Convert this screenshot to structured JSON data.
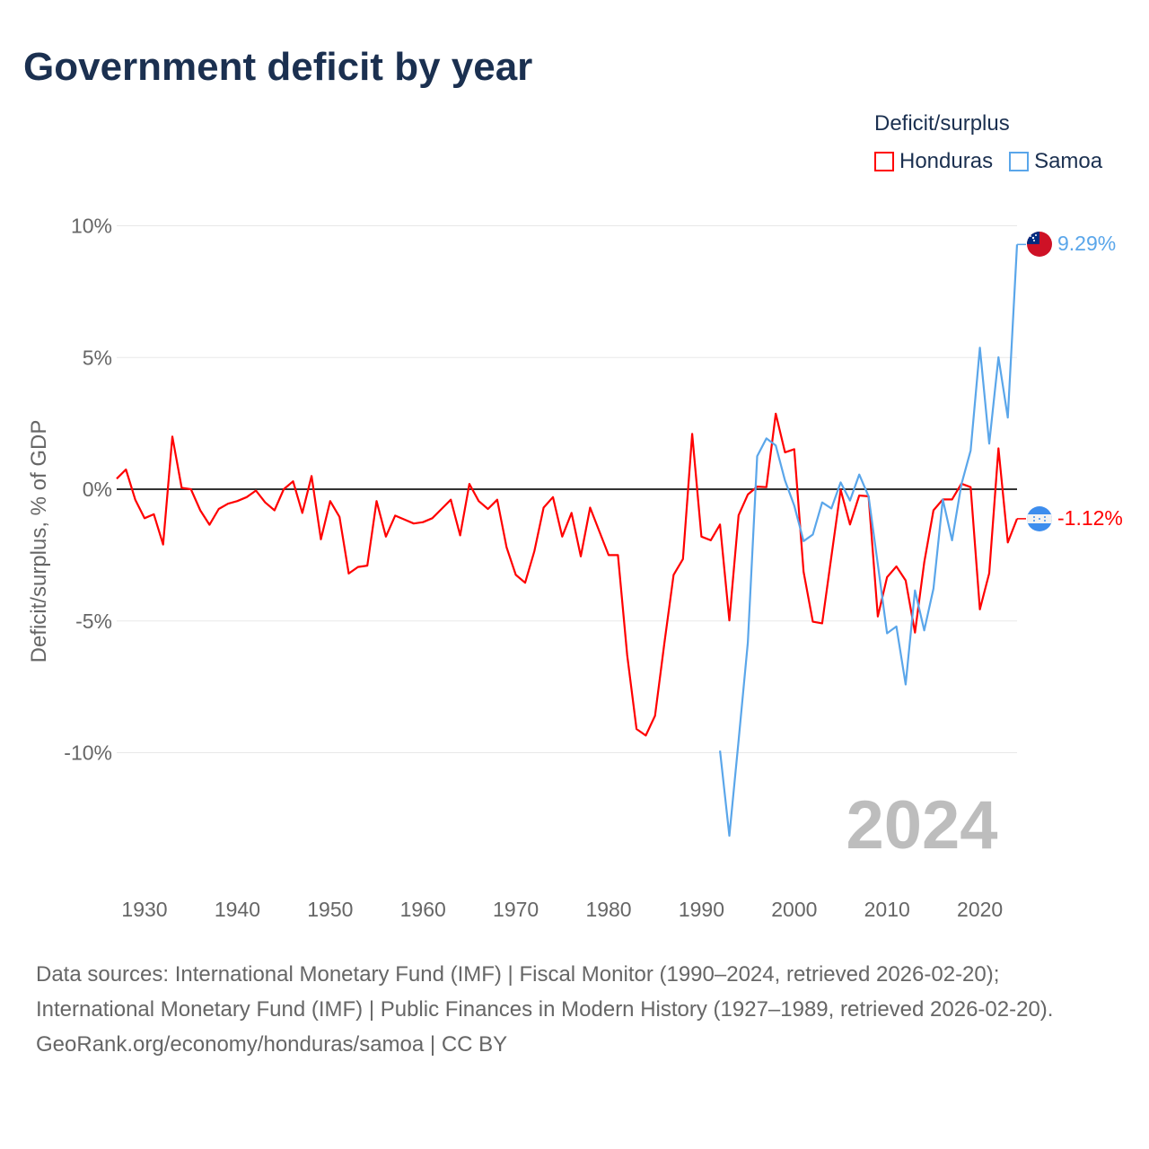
{
  "title": "Government deficit by year",
  "legend": {
    "title": "Deficit/surplus",
    "items": [
      {
        "name": "Honduras",
        "color": "#ff0000"
      },
      {
        "name": "Samoa",
        "color": "#5aa6ea"
      }
    ]
  },
  "year_watermark": "2024",
  "footer": {
    "sources": "Data sources: International Monetary Fund (IMF) | Fiscal Monitor (1990–2024, retrieved 2026-02-20); International Monetary Fund (IMF) | Public Finances in Modern History (1927–1989, retrieved 2026-02-20).",
    "credit": "GeoRank.org/economy/honduras/samoa | CC BY"
  },
  "chart_data": {
    "type": "line",
    "title": "Government deficit by year",
    "xlabel": "",
    "ylabel": "Deficit/surplus, % of GDP",
    "xlim": [
      1927,
      2024
    ],
    "ylim": [
      -13.5,
      10
    ],
    "yticks": [
      10,
      5,
      0,
      -5,
      -10
    ],
    "ytick_labels": [
      "10%",
      "5%",
      "0%",
      "-5%",
      "-10%"
    ],
    "xticks": [
      1930,
      1940,
      1950,
      1960,
      1970,
      1980,
      1990,
      2000,
      2010,
      2020
    ],
    "xtick_labels": [
      "1930",
      "1940",
      "1950",
      "1960",
      "1970",
      "1980",
      "1990",
      "2000",
      "2010",
      "2020"
    ],
    "grid": true,
    "legend_position": "top-right",
    "series": [
      {
        "name": "Honduras",
        "color": "#ff0000",
        "start_year": 1927,
        "end_label": "-1.12%",
        "flag": "honduras-flag",
        "values": [
          0.4,
          0.75,
          -0.4,
          -1.1,
          -0.95,
          -2.1,
          2.0,
          0.05,
          0,
          -0.8,
          -1.35,
          -0.75,
          -0.55,
          -0.45,
          -0.3,
          -0.05,
          -0.5,
          -0.8,
          0,
          0.3,
          -0.9,
          0.5,
          -1.9,
          -0.45,
          -1.05,
          -3.2,
          -2.95,
          -2.9,
          -0.45,
          -1.8,
          -1.0,
          -1.15,
          -1.3,
          -1.25,
          -1.1,
          -0.75,
          -0.4,
          -1.75,
          0.2,
          -0.45,
          -0.75,
          -0.4,
          -2.2,
          -3.25,
          -3.55,
          -2.35,
          -0.7,
          -0.3,
          -1.8,
          -0.9,
          -2.55,
          -0.7,
          -1.6,
          -2.5,
          -2.5,
          -6.3,
          -9.1,
          -9.35,
          -8.6,
          -5.85,
          -3.25,
          -2.65,
          2.1,
          -1.8,
          -1.94,
          -1.34,
          -4.98,
          -0.99,
          -0.2,
          0.1,
          0.08,
          2.87,
          1.4,
          1.52,
          -3.13,
          -5.03,
          -5.09,
          -2.55,
          -0.02,
          -1.34,
          -0.24,
          -0.27,
          -4.83,
          -3.34,
          -2.93,
          -3.46,
          -5.44,
          -2.78,
          -0.8,
          -0.39,
          -0.39,
          0.21,
          0.08,
          -4.56,
          -3.19,
          1.55,
          -2.02,
          -1.12
        ]
      },
      {
        "name": "Samoa",
        "color": "#5aa6ea",
        "start_year": 1992,
        "end_label": "9.29%",
        "flag": "samoa-flag",
        "values": [
          -9.92,
          -13.15,
          -9.54,
          -5.82,
          1.25,
          1.93,
          1.66,
          0.33,
          -0.62,
          -1.97,
          -1.72,
          -0.5,
          -0.73,
          0.26,
          -0.43,
          0.56,
          -0.27,
          -2.85,
          -5.47,
          -5.21,
          -7.41,
          -3.84,
          -5.36,
          -3.77,
          -0.39,
          -1.94,
          0.18,
          1.47,
          5.37,
          1.73,
          5.01,
          2.72,
          9.29
        ]
      }
    ]
  }
}
